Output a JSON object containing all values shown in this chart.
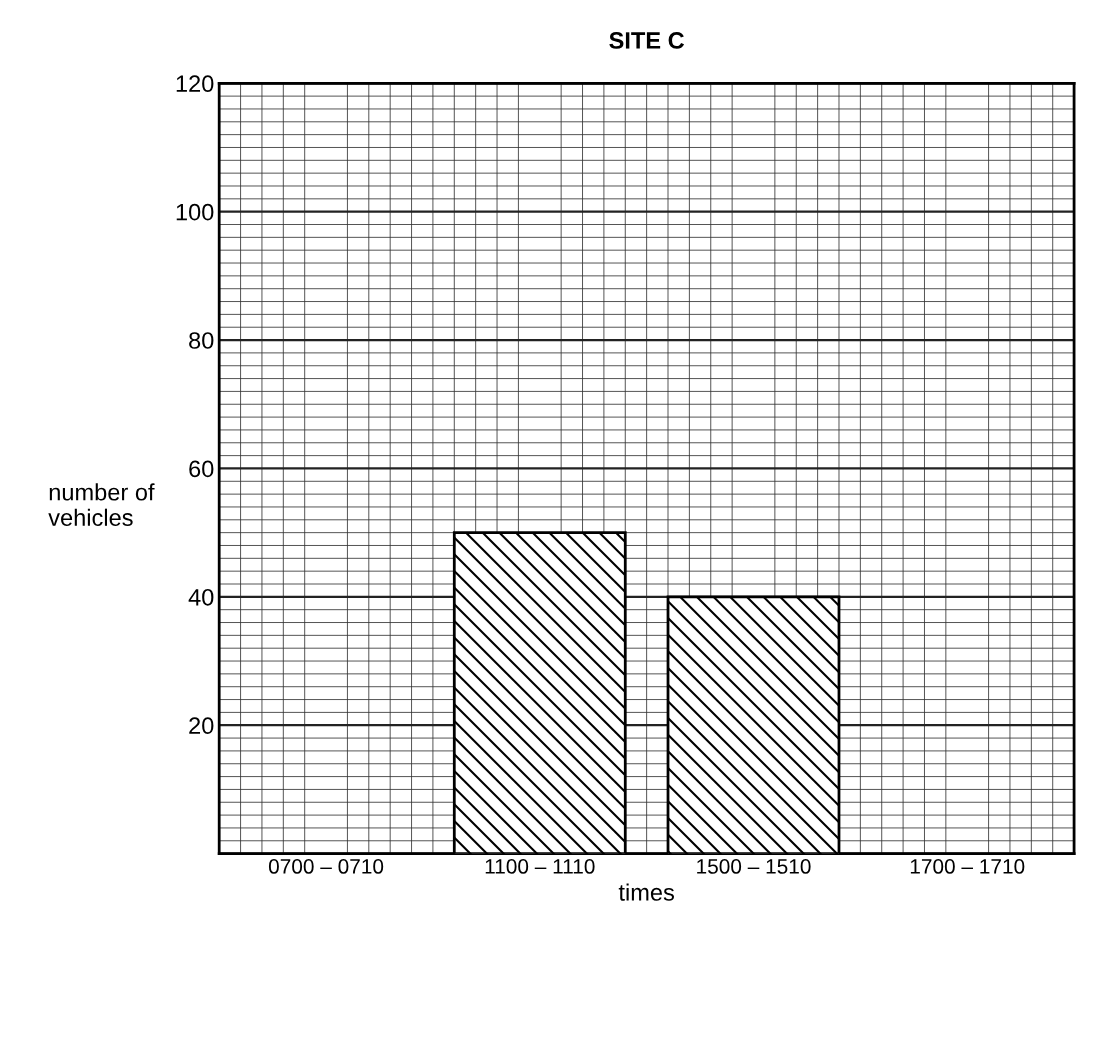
{
  "chart_data": {
    "type": "bar",
    "title": "SITE C",
    "xlabel": "times",
    "ylabel": "number of vehicles",
    "categories": [
      "0700 – 0710",
      "1100 – 1110",
      "1500 – 1510",
      "1700 – 1710"
    ],
    "values": [
      null,
      50,
      40,
      null
    ],
    "color": "#000000",
    "ylim": [
      0,
      120
    ],
    "yticks": [
      {
        "value": 0,
        "label": null
      },
      20,
      40,
      60,
      80,
      100,
      120
    ],
    "grid": true
  }
}
